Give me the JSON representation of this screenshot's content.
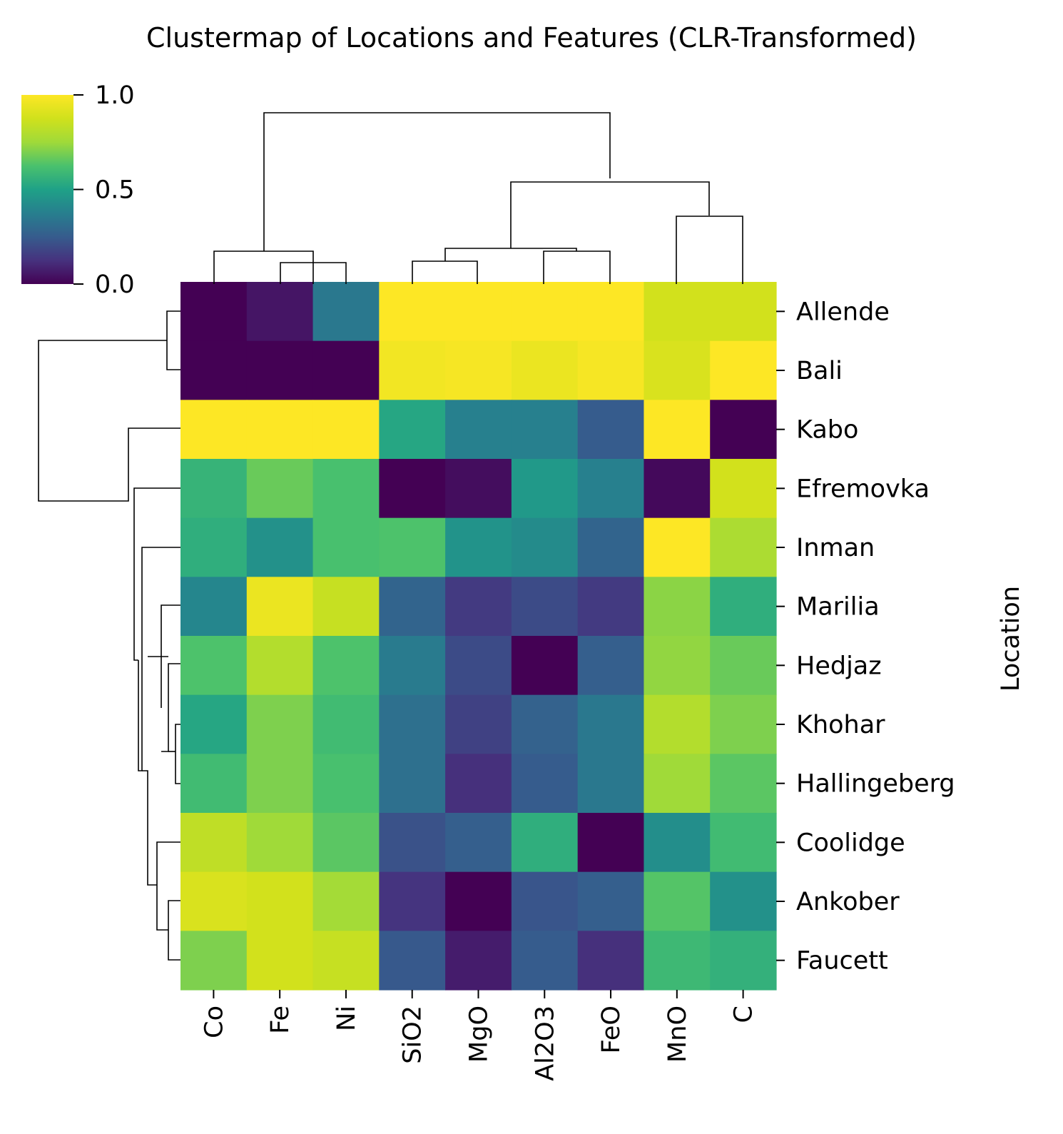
{
  "chart_data": {
    "type": "heatmap",
    "title": "Clustermap of Locations and Features (CLR-Transformed)",
    "ylabel": "Location",
    "xlabel": "",
    "colormap": "viridis",
    "colorbar": {
      "min": 0.0,
      "max": 1.0,
      "ticks": [
        "1.0",
        "0.5",
        "0.0"
      ],
      "tick_values": [
        1.0,
        0.5,
        0.0
      ],
      "placement": "top-left"
    },
    "columns": [
      "Co",
      "Fe",
      "Ni",
      "SiO2",
      "MgO",
      "Al2O3",
      "FeO",
      "MnO",
      "C"
    ],
    "rows": [
      "Allende",
      "Bali",
      "Kabo",
      "Efremovka",
      "Inman",
      "Marilia",
      "Hedjaz",
      "Khohar",
      "Hallingeberg",
      "Coolidge",
      "Ankober",
      "Faucett"
    ],
    "values": [
      [
        0.0,
        0.05,
        0.35,
        1.0,
        1.0,
        1.0,
        1.0,
        0.88,
        0.88
      ],
      [
        0.0,
        0.0,
        0.0,
        0.97,
        0.98,
        0.95,
        0.98,
        0.9,
        1.0
      ],
      [
        1.0,
        1.0,
        1.0,
        0.52,
        0.38,
        0.38,
        0.25,
        1.0,
        0.0
      ],
      [
        0.57,
        0.67,
        0.62,
        0.0,
        0.03,
        0.47,
        0.38,
        0.02,
        0.88
      ],
      [
        0.55,
        0.44,
        0.62,
        0.63,
        0.45,
        0.42,
        0.28,
        1.0,
        0.78
      ],
      [
        0.4,
        0.95,
        0.85,
        0.28,
        0.15,
        0.2,
        0.15,
        0.72,
        0.55
      ],
      [
        0.63,
        0.8,
        0.63,
        0.36,
        0.2,
        0.0,
        0.26,
        0.73,
        0.67
      ],
      [
        0.52,
        0.7,
        0.6,
        0.32,
        0.17,
        0.27,
        0.35,
        0.8,
        0.7
      ],
      [
        0.6,
        0.7,
        0.62,
        0.32,
        0.12,
        0.25,
        0.35,
        0.75,
        0.65
      ],
      [
        0.83,
        0.75,
        0.65,
        0.22,
        0.26,
        0.55,
        0.0,
        0.43,
        0.6
      ],
      [
        0.9,
        0.88,
        0.76,
        0.13,
        0.0,
        0.23,
        0.26,
        0.64,
        0.44
      ],
      [
        0.7,
        0.88,
        0.85,
        0.24,
        0.07,
        0.25,
        0.12,
        0.59,
        0.56
      ]
    ]
  }
}
